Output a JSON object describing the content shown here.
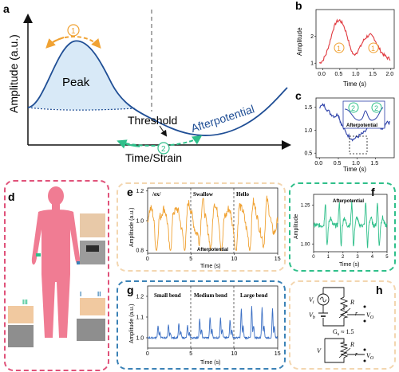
{
  "panel_letters": {
    "a": "a",
    "b": "b",
    "c": "c",
    "d": "d",
    "e": "e",
    "f": "f",
    "g": "g",
    "h": "h"
  },
  "colors": {
    "blue": "#1f4e95",
    "fill": "#d8e9f7",
    "orange": "#f0a233",
    "green": "#2fbf8a",
    "red": "#e0383e",
    "panel_e_border": "#f3d6b0",
    "panel_f_border": "#2fbf8a",
    "panel_g_border": "#3b82b6",
    "panel_h_border": "#f3d6b0",
    "panel_d_border": "#e0527a",
    "body_pink": "#f07c93"
  },
  "icons": {
    "circled_one": "①",
    "circled_two": "②"
  },
  "chart_data": [
    {
      "id": "a",
      "type": "line",
      "xlabel": "Time/Strain",
      "ylabel": "Amplitude (a.u.)",
      "annotations": [
        "Peak",
        "Threshold",
        "Afterpotential"
      ],
      "markers": [
        "①",
        "②"
      ]
    },
    {
      "id": "b",
      "type": "line",
      "xlabel": "Time (s)",
      "ylabel": "Amplitude",
      "xlim": [
        -0.2,
        2.1
      ],
      "ylim": [
        0.8,
        3.0
      ],
      "xticks": [
        "0.0",
        "0.5",
        "1.0",
        "1.5",
        "2.0"
      ],
      "yticks": [
        "1",
        "2"
      ],
      "series": [
        {
          "x": [
            -0.1,
            0.0,
            0.1,
            0.2,
            0.3,
            0.4,
            0.5,
            0.6,
            0.7,
            0.8,
            0.9,
            1.0,
            1.1,
            1.2,
            1.3,
            1.4,
            1.5,
            1.6,
            1.7,
            1.8,
            1.9,
            2.0
          ],
          "y": [
            1.0,
            1.1,
            1.35,
            1.75,
            2.25,
            2.55,
            2.6,
            2.45,
            2.1,
            1.6,
            1.3,
            1.4,
            1.6,
            1.85,
            2.0,
            2.05,
            1.95,
            1.7,
            1.45,
            1.3,
            1.2,
            1.15
          ]
        }
      ],
      "markers": [
        "①",
        "①"
      ]
    },
    {
      "id": "c",
      "type": "line",
      "xlabel": "Time (s)",
      "xlim": [
        -0.1,
        2.0
      ],
      "ylim": [
        0.4,
        1.7
      ],
      "xticks": [
        "0.0",
        "0.5",
        "1.0",
        "1.5"
      ],
      "yticks": [
        "0.5",
        "1.0",
        "1.5"
      ],
      "series": [
        {
          "x": [
            0.0,
            0.1,
            0.2,
            0.3,
            0.4,
            0.5,
            0.55,
            0.6,
            0.7,
            0.8,
            0.9,
            1.0,
            1.1,
            1.2,
            1.3,
            1.4,
            1.5,
            1.6,
            1.7,
            1.8,
            1.9
          ],
          "y": [
            1.5,
            1.55,
            1.45,
            1.35,
            1.3,
            1.35,
            1.2,
            1.1,
            0.95,
            0.85,
            0.8,
            0.85,
            0.9,
            0.95,
            1.05,
            1.2,
            1.35,
            1.1,
            1.0,
            1.2,
            1.15
          ]
        }
      ],
      "inset_label": "Afterpotential",
      "markers": [
        "②",
        "②"
      ]
    },
    {
      "id": "e",
      "type": "line",
      "xlabel": "Time (s)",
      "ylabel": "Amplitude (a.u.)",
      "xlim": [
        0,
        15
      ],
      "ylim": [
        0.78,
        1.22
      ],
      "xticks": [
        "0",
        "5",
        "10",
        "15"
      ],
      "yticks": [
        "0.8",
        "1.0",
        "1.2"
      ],
      "segment_labels": [
        "/ex/",
        "Swallow",
        "Hello"
      ],
      "annotation": "Afterpotential"
    },
    {
      "id": "f",
      "type": "line",
      "xlabel": "Time (s)",
      "ylabel": "Amplitude",
      "xlim": [
        0,
        5
      ],
      "ylim": [
        0.95,
        1.32
      ],
      "xticks": [
        "0",
        "1",
        "2",
        "3",
        "4",
        "5"
      ],
      "yticks": [
        "1.00",
        "1.25"
      ],
      "annotation": "Afterpotential"
    },
    {
      "id": "g",
      "type": "line",
      "xlabel": "Time (s)",
      "ylabel": "Amplitude (a.u.)",
      "xlim": [
        0,
        15
      ],
      "ylim": [
        0.95,
        1.25
      ],
      "xticks": [
        "0",
        "5",
        "10",
        "15"
      ],
      "yticks": [
        "1.0",
        "1.1",
        "1.2"
      ],
      "segment_labels": [
        "Small bend",
        "Medium bend",
        "Large bend"
      ]
    }
  ],
  "panel_d": {
    "labels": [
      "I",
      "II",
      "III"
    ]
  },
  "panel_h": {
    "vi": "V",
    "vi_sub": "i",
    "vb": "V",
    "vb_sub": "b",
    "r_big": "R",
    "r_small": "r",
    "vo": "V",
    "vo_sub": "O",
    "gain": "G",
    "gain_sub": "s",
    "gain_value": "≈ 1.5",
    "v": "V"
  }
}
